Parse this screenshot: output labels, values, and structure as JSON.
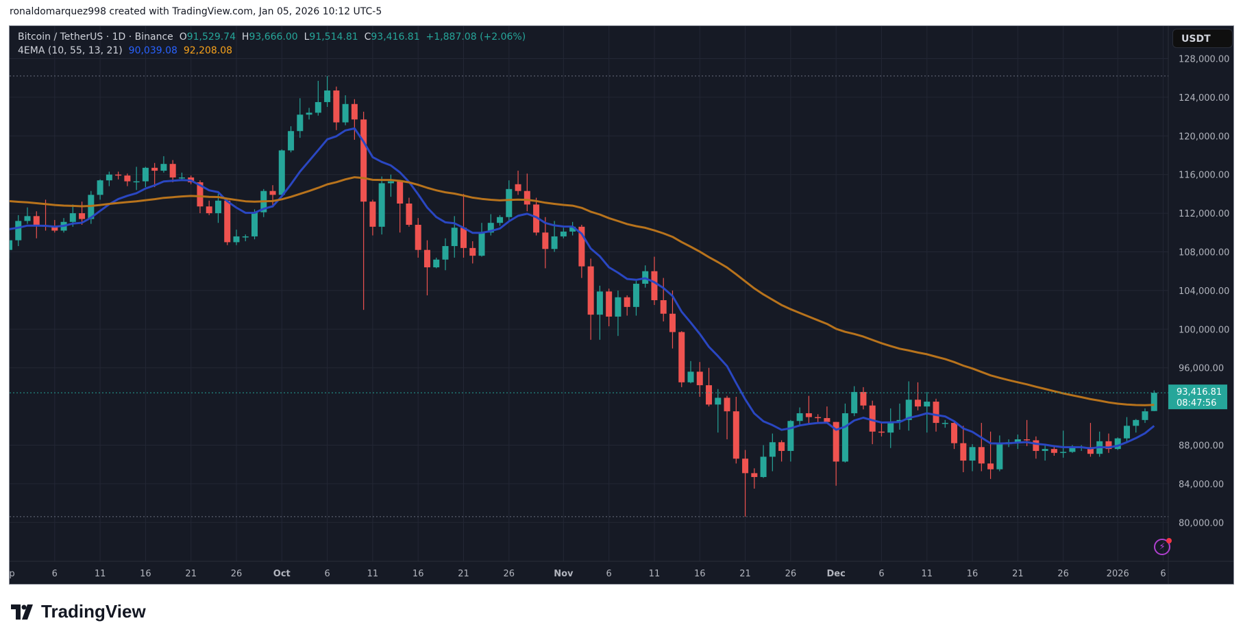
{
  "attribution": "ronaldomarquez998 created with TradingView.com, Jan 05, 2026 10:12 UTC-5",
  "legend": {
    "symbol": "Bitcoin / TetherUS · 1D · Binance",
    "o_label": "O",
    "o": "91,529.74",
    "h_label": "H",
    "h": "93,666.00",
    "l_label": "L",
    "l": "91,514.81",
    "c_label": "C",
    "c": "93,416.81",
    "change": "+1,887.08 (+2.06%)",
    "indicator": "4EMA (10, 55, 13, 21)",
    "ema_fast": "90,039.08",
    "ema_slow": "92,208.08"
  },
  "currency_button": "USDT",
  "last_price_label": "93,416.81",
  "countdown": "08:47:56",
  "brand": "TradingView",
  "colors": {
    "background": "#161a25",
    "grid": "#232735",
    "up": "#26a69a",
    "down": "#ef5350",
    "ema_fast": "#2a47c2",
    "ema_slow": "#b8731c",
    "text": "#b2b5be"
  },
  "icons": [
    "tradingview-logo-icon",
    "lightning-alert-icon"
  ],
  "chart_data": {
    "type": "candlestick",
    "title": "Bitcoin / TetherUS · 1D · Binance",
    "ylim": [
      76000,
      130000
    ],
    "xlim": [
      "2025-08-31",
      "2026-01-09"
    ],
    "y_ticks": [
      "128,000.00",
      "124,000.00",
      "120,000.00",
      "116,000.00",
      "112,000.00",
      "108,000.00",
      "104,000.00",
      "100,000.00",
      "96,000.00",
      "88,000.00",
      "84,000.00",
      "80,000.00"
    ],
    "x_ticks": [
      {
        "date": "2025-09-01",
        "label": "ep"
      },
      {
        "date": "2025-09-06",
        "label": "6"
      },
      {
        "date": "2025-09-11",
        "label": "11"
      },
      {
        "date": "2025-09-16",
        "label": "16"
      },
      {
        "date": "2025-09-21",
        "label": "21"
      },
      {
        "date": "2025-09-26",
        "label": "26"
      },
      {
        "date": "2025-10-01",
        "label": "Oct"
      },
      {
        "date": "2025-10-06",
        "label": "6"
      },
      {
        "date": "2025-10-11",
        "label": "11"
      },
      {
        "date": "2025-10-16",
        "label": "16"
      },
      {
        "date": "2025-10-21",
        "label": "21"
      },
      {
        "date": "2025-10-26",
        "label": "26"
      },
      {
        "date": "2025-11-01",
        "label": "Nov"
      },
      {
        "date": "2025-11-06",
        "label": "6"
      },
      {
        "date": "2025-11-11",
        "label": "11"
      },
      {
        "date": "2025-11-16",
        "label": "16"
      },
      {
        "date": "2025-11-21",
        "label": "21"
      },
      {
        "date": "2025-11-26",
        "label": "26"
      },
      {
        "date": "2025-12-01",
        "label": "Dec"
      },
      {
        "date": "2025-12-06",
        "label": "6"
      },
      {
        "date": "2025-12-11",
        "label": "11"
      },
      {
        "date": "2025-12-16",
        "label": "16"
      },
      {
        "date": "2025-12-21",
        "label": "21"
      },
      {
        "date": "2025-12-26",
        "label": "26"
      },
      {
        "date": "2026-01-01",
        "label": "2026"
      },
      {
        "date": "2026-01-06",
        "label": "6"
      }
    ],
    "ema_periods": [
      10,
      55
    ],
    "high_marker": 126200,
    "low_marker": 80600,
    "last_price": 93416.81,
    "grid": true,
    "candles": [
      [
        "2025-09-01",
        108200,
        109900,
        107300,
        109200
      ],
      [
        "2025-09-02",
        109200,
        111800,
        108600,
        111200
      ],
      [
        "2025-09-03",
        111200,
        112600,
        110900,
        111700
      ],
      [
        "2025-09-04",
        111700,
        112200,
        109400,
        110700
      ],
      [
        "2025-09-05",
        110700,
        113400,
        110200,
        110600
      ],
      [
        "2025-09-06",
        110600,
        111300,
        110000,
        110200
      ],
      [
        "2025-09-07",
        110200,
        111500,
        110000,
        111100
      ],
      [
        "2025-09-08",
        111100,
        112900,
        110600,
        112000
      ],
      [
        "2025-09-09",
        112000,
        113200,
        110800,
        111400
      ],
      [
        "2025-09-10",
        111400,
        114300,
        110900,
        113900
      ],
      [
        "2025-09-11",
        113900,
        115500,
        113400,
        115400
      ],
      [
        "2025-09-12",
        115400,
        116300,
        114800,
        116000
      ],
      [
        "2025-09-13",
        116000,
        116300,
        115500,
        115900
      ],
      [
        "2025-09-14",
        115900,
        116100,
        114800,
        115300
      ],
      [
        "2025-09-15",
        115300,
        116800,
        114400,
        115300
      ],
      [
        "2025-09-16",
        115300,
        116800,
        114700,
        116700
      ],
      [
        "2025-09-17",
        116700,
        117200,
        114700,
        116400
      ],
      [
        "2025-09-18",
        116400,
        117900,
        116200,
        117100
      ],
      [
        "2025-09-19",
        117100,
        117500,
        115200,
        115700
      ],
      [
        "2025-09-20",
        115700,
        116200,
        115500,
        115700
      ],
      [
        "2025-09-21",
        115700,
        115900,
        115000,
        115200
      ],
      [
        "2025-09-22",
        115200,
        115400,
        112000,
        112700
      ],
      [
        "2025-09-23",
        112700,
        113300,
        111800,
        112000
      ],
      [
        "2025-09-24",
        112000,
        114000,
        111000,
        113300
      ],
      [
        "2025-09-25",
        113300,
        113400,
        108700,
        109000
      ],
      [
        "2025-09-26",
        109000,
        110300,
        108700,
        109600
      ],
      [
        "2025-09-27",
        109600,
        109800,
        109100,
        109600
      ],
      [
        "2025-09-28",
        109600,
        112400,
        109300,
        112100
      ],
      [
        "2025-09-29",
        112100,
        114500,
        111600,
        114300
      ],
      [
        "2025-09-30",
        114300,
        114900,
        112600,
        113900
      ],
      [
        "2025-10-01",
        113900,
        118600,
        113700,
        118500
      ],
      [
        "2025-10-02",
        118500,
        121000,
        118300,
        120500
      ],
      [
        "2025-10-03",
        120500,
        123900,
        119800,
        122200
      ],
      [
        "2025-10-04",
        122200,
        122900,
        121700,
        122400
      ],
      [
        "2025-10-05",
        122400,
        125700,
        122100,
        123500
      ],
      [
        "2025-10-06",
        123500,
        126200,
        123000,
        124700
      ],
      [
        "2025-10-07",
        124700,
        125100,
        120600,
        121400
      ],
      [
        "2025-10-08",
        121400,
        124200,
        121100,
        123300
      ],
      [
        "2025-10-09",
        123300,
        123800,
        119600,
        121700
      ],
      [
        "2025-10-10",
        121700,
        122500,
        102000,
        113200
      ],
      [
        "2025-10-11",
        113200,
        113400,
        109700,
        110600
      ],
      [
        "2025-10-12",
        110600,
        115800,
        109800,
        115100
      ],
      [
        "2025-10-13",
        115100,
        116000,
        113700,
        115300
      ],
      [
        "2025-10-14",
        115300,
        115400,
        110000,
        113000
      ],
      [
        "2025-10-15",
        113000,
        113600,
        110600,
        110800
      ],
      [
        "2025-10-16",
        110800,
        111500,
        107400,
        108200
      ],
      [
        "2025-10-17",
        108200,
        109200,
        103500,
        106400
      ],
      [
        "2025-10-18",
        106400,
        107400,
        106300,
        107200
      ],
      [
        "2025-10-19",
        107200,
        109400,
        106100,
        108600
      ],
      [
        "2025-10-20",
        108600,
        111700,
        107400,
        110500
      ],
      [
        "2025-10-21",
        110500,
        114000,
        107400,
        108400
      ],
      [
        "2025-10-22",
        108400,
        109100,
        106800,
        107600
      ],
      [
        "2025-10-23",
        107600,
        111000,
        107500,
        110000
      ],
      [
        "2025-10-24",
        110000,
        111900,
        109700,
        111000
      ],
      [
        "2025-10-25",
        111000,
        111800,
        110700,
        111600
      ],
      [
        "2025-10-26",
        111600,
        115400,
        111200,
        114500
      ],
      [
        "2025-10-27",
        115000,
        116400,
        113900,
        114300
      ],
      [
        "2025-10-28",
        114300,
        116100,
        112200,
        112900
      ],
      [
        "2025-10-29",
        112900,
        113600,
        109700,
        110000
      ],
      [
        "2025-10-30",
        110000,
        111600,
        106300,
        108300
      ],
      [
        "2025-10-31",
        108300,
        111200,
        108000,
        109600
      ],
      [
        "2025-11-01",
        109600,
        110500,
        109400,
        110100
      ],
      [
        "2025-11-02",
        110100,
        111100,
        109700,
        110600
      ],
      [
        "2025-11-03",
        110600,
        110800,
        105300,
        106500
      ],
      [
        "2025-11-04",
        106500,
        107300,
        98900,
        101500
      ],
      [
        "2025-11-05",
        101500,
        104500,
        98900,
        103900
      ],
      [
        "2025-11-06",
        103900,
        104200,
        100300,
        101300
      ],
      [
        "2025-11-07",
        101300,
        104000,
        99300,
        103300
      ],
      [
        "2025-11-08",
        103300,
        103500,
        101400,
        102300
      ],
      [
        "2025-11-09",
        102300,
        105000,
        101400,
        104700
      ],
      [
        "2025-11-10",
        104700,
        106600,
        104300,
        106000
      ],
      [
        "2025-11-11",
        106000,
        107500,
        102500,
        103000
      ],
      [
        "2025-11-12",
        103000,
        105300,
        100800,
        101600
      ],
      [
        "2025-11-13",
        101600,
        104000,
        98000,
        99700
      ],
      [
        "2025-11-14",
        99700,
        99800,
        94000,
        94500
      ],
      [
        "2025-11-15",
        94500,
        96700,
        94400,
        95600
      ],
      [
        "2025-11-16",
        95600,
        96600,
        93000,
        94200
      ],
      [
        "2025-11-17",
        94200,
        96000,
        92000,
        92200
      ],
      [
        "2025-11-18",
        92200,
        93800,
        89300,
        92900
      ],
      [
        "2025-11-19",
        92900,
        93100,
        88600,
        91500
      ],
      [
        "2025-11-20",
        91500,
        93000,
        86100,
        86600
      ],
      [
        "2025-11-21",
        86600,
        87500,
        80600,
        85100
      ],
      [
        "2025-11-22",
        85100,
        85600,
        83500,
        84700
      ],
      [
        "2025-11-23",
        84700,
        88000,
        84600,
        86800
      ],
      [
        "2025-11-24",
        86800,
        89200,
        85300,
        88300
      ],
      [
        "2025-11-25",
        88300,
        88500,
        86300,
        87400
      ],
      [
        "2025-11-26",
        87400,
        90600,
        86300,
        90500
      ],
      [
        "2025-11-27",
        90500,
        91900,
        90100,
        91300
      ],
      [
        "2025-11-28",
        91300,
        93100,
        90200,
        90900
      ],
      [
        "2025-11-29",
        90900,
        91200,
        90200,
        90800
      ],
      [
        "2025-11-30",
        90800,
        92000,
        90300,
        90400
      ],
      [
        "2025-12-01",
        90400,
        90400,
        83800,
        86300
      ],
      [
        "2025-12-02",
        86300,
        92300,
        86200,
        91300
      ],
      [
        "2025-12-03",
        91300,
        94100,
        91000,
        93500
      ],
      [
        "2025-12-04",
        93500,
        94000,
        91700,
        92100
      ],
      [
        "2025-12-05",
        92100,
        92600,
        88100,
        89400
      ],
      [
        "2025-12-06",
        89400,
        90300,
        88900,
        89300
      ],
      [
        "2025-12-07",
        89300,
        91800,
        87700,
        90400
      ],
      [
        "2025-12-08",
        90400,
        92300,
        89600,
        90600
      ],
      [
        "2025-12-09",
        90600,
        94600,
        89500,
        92700
      ],
      [
        "2025-12-10",
        92700,
        94500,
        91600,
        92000
      ],
      [
        "2025-12-11",
        92000,
        93500,
        89300,
        92500
      ],
      [
        "2025-12-12",
        92500,
        92800,
        89400,
        90300
      ],
      [
        "2025-12-13",
        90300,
        90600,
        89800,
        90300
      ],
      [
        "2025-12-14",
        90300,
        90500,
        87600,
        88200
      ],
      [
        "2025-12-15",
        88200,
        90000,
        85200,
        86400
      ],
      [
        "2025-12-16",
        86400,
        88100,
        85300,
        87800
      ],
      [
        "2025-12-17",
        87800,
        90300,
        85300,
        86100
      ],
      [
        "2025-12-18",
        86100,
        89400,
        84500,
        85500
      ],
      [
        "2025-12-19",
        85500,
        89000,
        85300,
        88100
      ],
      [
        "2025-12-20",
        88100,
        88600,
        87800,
        88300
      ],
      [
        "2025-12-21",
        88300,
        89100,
        87600,
        88600
      ],
      [
        "2025-12-22",
        88600,
        90600,
        87900,
        88500
      ],
      [
        "2025-12-23",
        88500,
        88900,
        86600,
        87400
      ],
      [
        "2025-12-24",
        87400,
        88000,
        86400,
        87600
      ],
      [
        "2025-12-25",
        87600,
        88000,
        86900,
        87200
      ],
      [
        "2025-12-26",
        87200,
        89500,
        86700,
        87300
      ],
      [
        "2025-12-27",
        87300,
        88000,
        87200,
        87800
      ],
      [
        "2025-12-28",
        87800,
        88000,
        87400,
        87800
      ],
      [
        "2025-12-29",
        87800,
        90300,
        86800,
        87100
      ],
      [
        "2025-12-30",
        87100,
        89400,
        86800,
        88400
      ],
      [
        "2025-12-31",
        88400,
        89200,
        87200,
        87600
      ],
      [
        "2026-01-01",
        87600,
        88800,
        87500,
        88700
      ],
      [
        "2026-01-02",
        88700,
        90900,
        88300,
        90000
      ],
      [
        "2026-01-03",
        90000,
        90700,
        89300,
        90600
      ],
      [
        "2026-01-04",
        90600,
        91800,
        90300,
        91500
      ],
      [
        "2026-01-05",
        91529.74,
        93666,
        91514.81,
        93416.81
      ]
    ]
  }
}
